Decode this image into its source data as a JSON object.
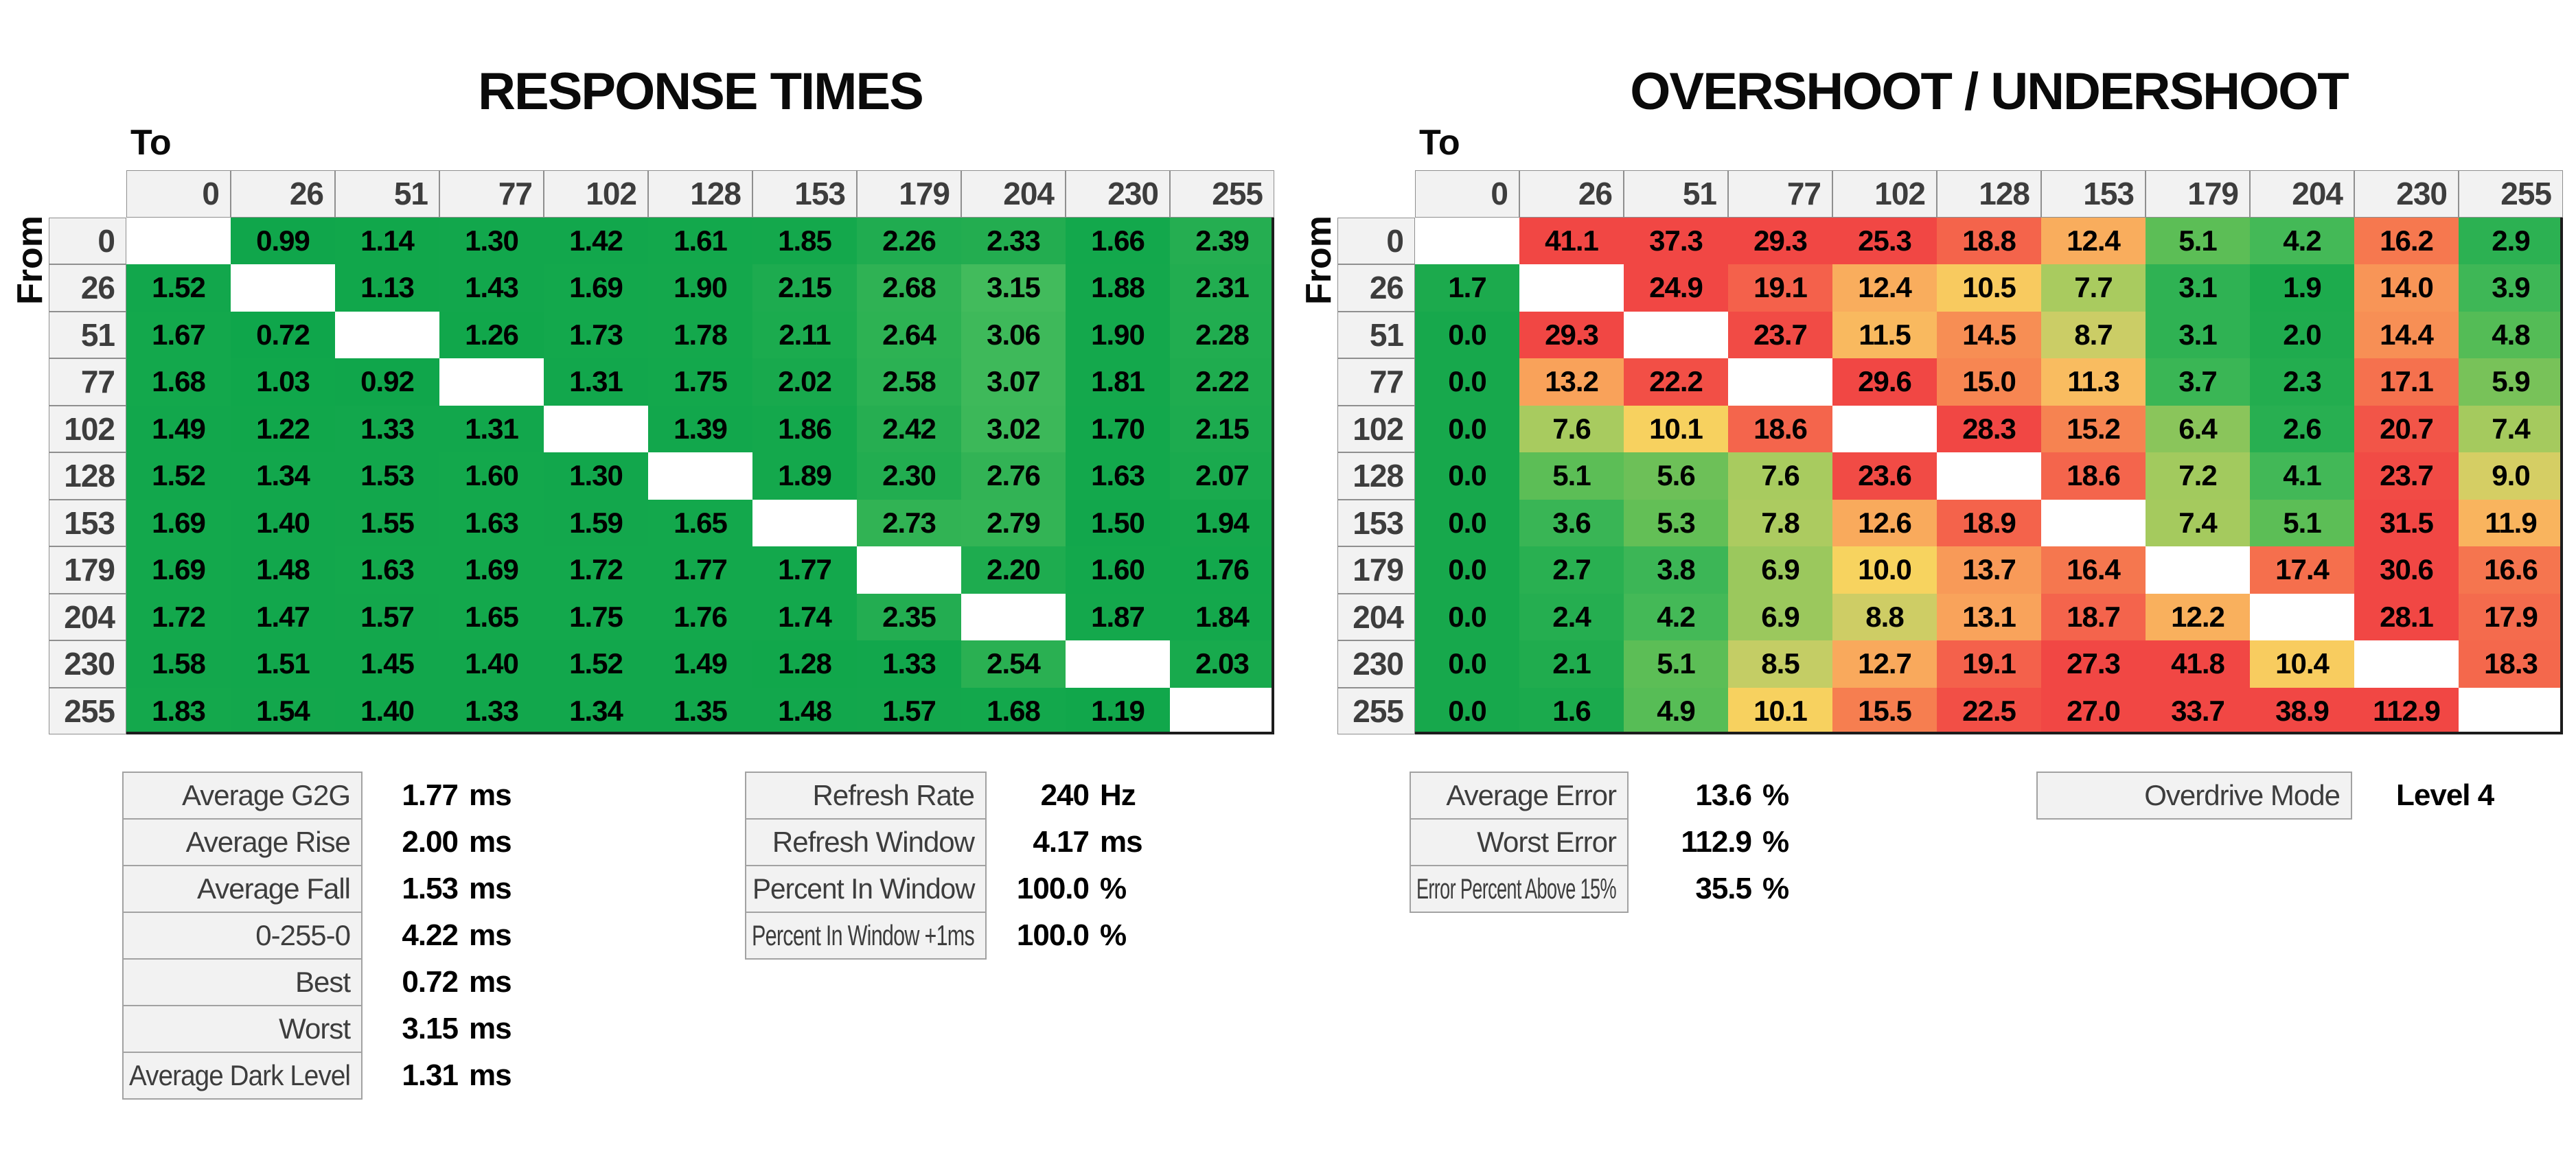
{
  "axis": {
    "to_label": "To",
    "from_label": "From"
  },
  "theme": {
    "page_bg": "#FFFFFF",
    "header_bg": "#F2F2F2",
    "header_border": "#8F8F8F",
    "header_text": "#3D3D3D",
    "matrix_border": "#1C1C1C",
    "diagonal_bg": "#FFFFFF",
    "cell_text": "#000000",
    "stat_label_text": "#3D3D3D",
    "stat_value_text": "#000000"
  },
  "chart_data": [
    {
      "type": "heatmap",
      "title": "RESPONSE TIMES",
      "xlabel": "To",
      "ylabel": "From",
      "unit": "ms",
      "decimals": 2,
      "categories": [
        0,
        26,
        51,
        77,
        102,
        128,
        153,
        179,
        204,
        230,
        255
      ],
      "rows": [
        [
          null,
          0.99,
          1.14,
          1.3,
          1.42,
          1.61,
          1.85,
          2.26,
          2.33,
          1.66,
          2.39
        ],
        [
          1.52,
          null,
          1.13,
          1.43,
          1.69,
          1.9,
          2.15,
          2.68,
          3.15,
          1.88,
          2.31
        ],
        [
          1.67,
          0.72,
          null,
          1.26,
          1.73,
          1.78,
          2.11,
          2.64,
          3.06,
          1.9,
          2.28
        ],
        [
          1.68,
          1.03,
          0.92,
          null,
          1.31,
          1.75,
          2.02,
          2.58,
          3.07,
          1.81,
          2.22
        ],
        [
          1.49,
          1.22,
          1.33,
          1.31,
          null,
          1.39,
          1.86,
          2.42,
          3.02,
          1.7,
          2.15
        ],
        [
          1.52,
          1.34,
          1.53,
          1.6,
          1.3,
          null,
          1.89,
          2.3,
          2.76,
          1.63,
          2.07
        ],
        [
          1.69,
          1.4,
          1.55,
          1.63,
          1.59,
          1.65,
          null,
          2.73,
          2.79,
          1.5,
          1.94
        ],
        [
          1.69,
          1.48,
          1.63,
          1.69,
          1.72,
          1.77,
          1.77,
          null,
          2.2,
          1.6,
          1.76
        ],
        [
          1.72,
          1.47,
          1.57,
          1.65,
          1.75,
          1.76,
          1.74,
          2.35,
          null,
          1.87,
          1.84
        ],
        [
          1.58,
          1.51,
          1.45,
          1.4,
          1.52,
          1.49,
          1.28,
          1.33,
          2.54,
          null,
          2.03
        ],
        [
          1.83,
          1.54,
          1.4,
          1.33,
          1.34,
          1.35,
          1.48,
          1.57,
          1.68,
          1.19,
          null
        ]
      ],
      "colorscale": {
        "stops": [
          [
            0.7,
            "#0FA64B"
          ],
          [
            1.9,
            "#14A84C"
          ],
          [
            2.4,
            "#25AE51"
          ],
          [
            2.8,
            "#33B455"
          ],
          [
            3.2,
            "#44BC5D"
          ]
        ]
      }
    },
    {
      "type": "heatmap",
      "title": "OVERSHOOT / UNDERSHOOT",
      "xlabel": "To",
      "ylabel": "From",
      "unit": "%",
      "decimals": 1,
      "categories": [
        0,
        26,
        51,
        77,
        102,
        128,
        153,
        179,
        204,
        230,
        255
      ],
      "rows": [
        [
          null,
          41.1,
          37.3,
          29.3,
          25.3,
          18.8,
          12.4,
          5.1,
          4.2,
          16.2,
          2.9
        ],
        [
          1.7,
          null,
          24.9,
          19.1,
          12.4,
          10.5,
          7.7,
          3.1,
          1.9,
          14.0,
          3.9
        ],
        [
          0.0,
          29.3,
          null,
          23.7,
          11.5,
          14.5,
          8.7,
          3.1,
          2.0,
          14.4,
          4.8
        ],
        [
          0.0,
          13.2,
          22.2,
          null,
          29.6,
          15.0,
          11.3,
          3.7,
          2.3,
          17.1,
          5.9
        ],
        [
          0.0,
          7.6,
          10.1,
          18.6,
          null,
          28.3,
          15.2,
          6.4,
          2.6,
          20.7,
          7.4
        ],
        [
          0.0,
          5.1,
          5.6,
          7.6,
          23.6,
          null,
          18.6,
          7.2,
          4.1,
          23.7,
          9.0
        ],
        [
          0.0,
          3.6,
          5.3,
          7.8,
          12.6,
          18.9,
          null,
          7.4,
          5.1,
          31.5,
          11.9
        ],
        [
          0.0,
          2.7,
          3.8,
          6.9,
          10.0,
          13.7,
          16.4,
          null,
          17.4,
          30.6,
          16.6
        ],
        [
          0.0,
          2.4,
          4.2,
          6.9,
          8.8,
          13.1,
          18.7,
          12.2,
          null,
          28.1,
          17.9
        ],
        [
          0.0,
          2.1,
          5.1,
          8.5,
          12.7,
          19.1,
          27.3,
          41.8,
          10.4,
          null,
          18.3
        ],
        [
          0.0,
          1.6,
          4.9,
          10.1,
          15.5,
          22.5,
          27.0,
          33.7,
          38.9,
          112.9,
          null
        ]
      ],
      "colorscale": {
        "stops": [
          [
            0.0,
            "#17A84C"
          ],
          [
            1.8,
            "#1CAA4D"
          ],
          [
            3.1,
            "#2FB253"
          ],
          [
            4.2,
            "#44B957"
          ],
          [
            5.2,
            "#5FBE56"
          ],
          [
            7.0,
            "#9FC95D"
          ],
          [
            7.7,
            "#A9CB5F"
          ],
          [
            8.7,
            "#CBCD66"
          ],
          [
            10.0,
            "#F7D35F"
          ],
          [
            11.3,
            "#F9BC60"
          ],
          [
            13.0,
            "#F9A55B"
          ],
          [
            15.5,
            "#F67E50"
          ],
          [
            18.5,
            "#F4664C"
          ],
          [
            21.0,
            "#F25347"
          ],
          [
            25.0,
            "#F14744"
          ]
        ]
      }
    }
  ],
  "stats": {
    "response_summary": {
      "rows": [
        {
          "label": "Average G2G",
          "value": "1.77",
          "unit": "ms"
        },
        {
          "label": "Average Rise",
          "value": "2.00",
          "unit": "ms"
        },
        {
          "label": "Average Fall",
          "value": "1.53",
          "unit": "ms"
        },
        {
          "label": "0-255-0",
          "value": "4.22",
          "unit": "ms"
        },
        {
          "label": "Best",
          "value": "0.72",
          "unit": "ms"
        },
        {
          "label": "Worst",
          "value": "3.15",
          "unit": "ms"
        },
        {
          "label": "Average Dark Level",
          "value": "1.31",
          "unit": "ms"
        }
      ]
    },
    "refresh_summary": {
      "rows": [
        {
          "label": "Refresh Rate",
          "value": "240",
          "unit": "Hz"
        },
        {
          "label": "Refresh Window",
          "value": "4.17",
          "unit": "ms"
        },
        {
          "label": "Percent In Window",
          "value": "100.0",
          "unit": "%"
        },
        {
          "label": "Percent In Window +1ms",
          "value": "100.0",
          "unit": "%"
        }
      ]
    },
    "error_summary": {
      "rows": [
        {
          "label": "Average Error",
          "value": "13.6",
          "unit": "%"
        },
        {
          "label": "Worst Error",
          "value": "112.9",
          "unit": "%"
        },
        {
          "label": "Error Percent Above 15%",
          "value": "35.5",
          "unit": "%"
        }
      ]
    },
    "overdrive": {
      "label": "Overdrive Mode",
      "value": "Level 4"
    }
  }
}
